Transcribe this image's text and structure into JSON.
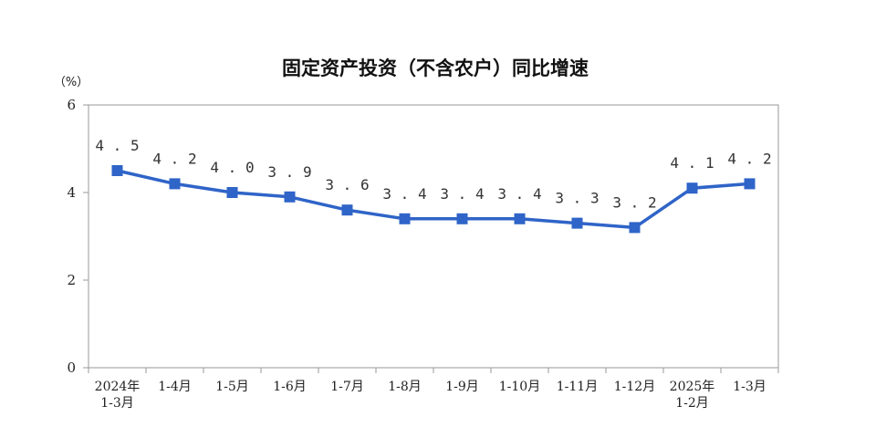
{
  "chart_data": {
    "type": "line",
    "title": "固定资产投资（不含农户）同比增速",
    "unit": "（%）",
    "categories": [
      [
        "2024年",
        "1-3月"
      ],
      [
        "1-4月"
      ],
      [
        "1-5月"
      ],
      [
        "1-6月"
      ],
      [
        "1-7月"
      ],
      [
        "1-8月"
      ],
      [
        "1-9月"
      ],
      [
        "1-10月"
      ],
      [
        "1-11月"
      ],
      [
        "1-12月"
      ],
      [
        "2025年",
        "1-2月"
      ],
      [
        "1-3月"
      ]
    ],
    "values": [
      4.5,
      4.2,
      4.0,
      3.9,
      3.6,
      3.4,
      3.4,
      3.4,
      3.3,
      3.2,
      4.1,
      4.2
    ],
    "value_labels": [
      "4.5",
      "4.2",
      "4.0",
      "3.9",
      "3.6",
      "3.4",
      "3.4",
      "3.4",
      "3.3",
      "3.2",
      "4.1",
      "4.2"
    ],
    "ylim": [
      0,
      6
    ],
    "yticks": [
      0,
      2,
      4,
      6
    ],
    "grid": false,
    "colors": {
      "line": "#2f64c8",
      "marker": "#2f64c8",
      "axis": "#999999"
    }
  }
}
